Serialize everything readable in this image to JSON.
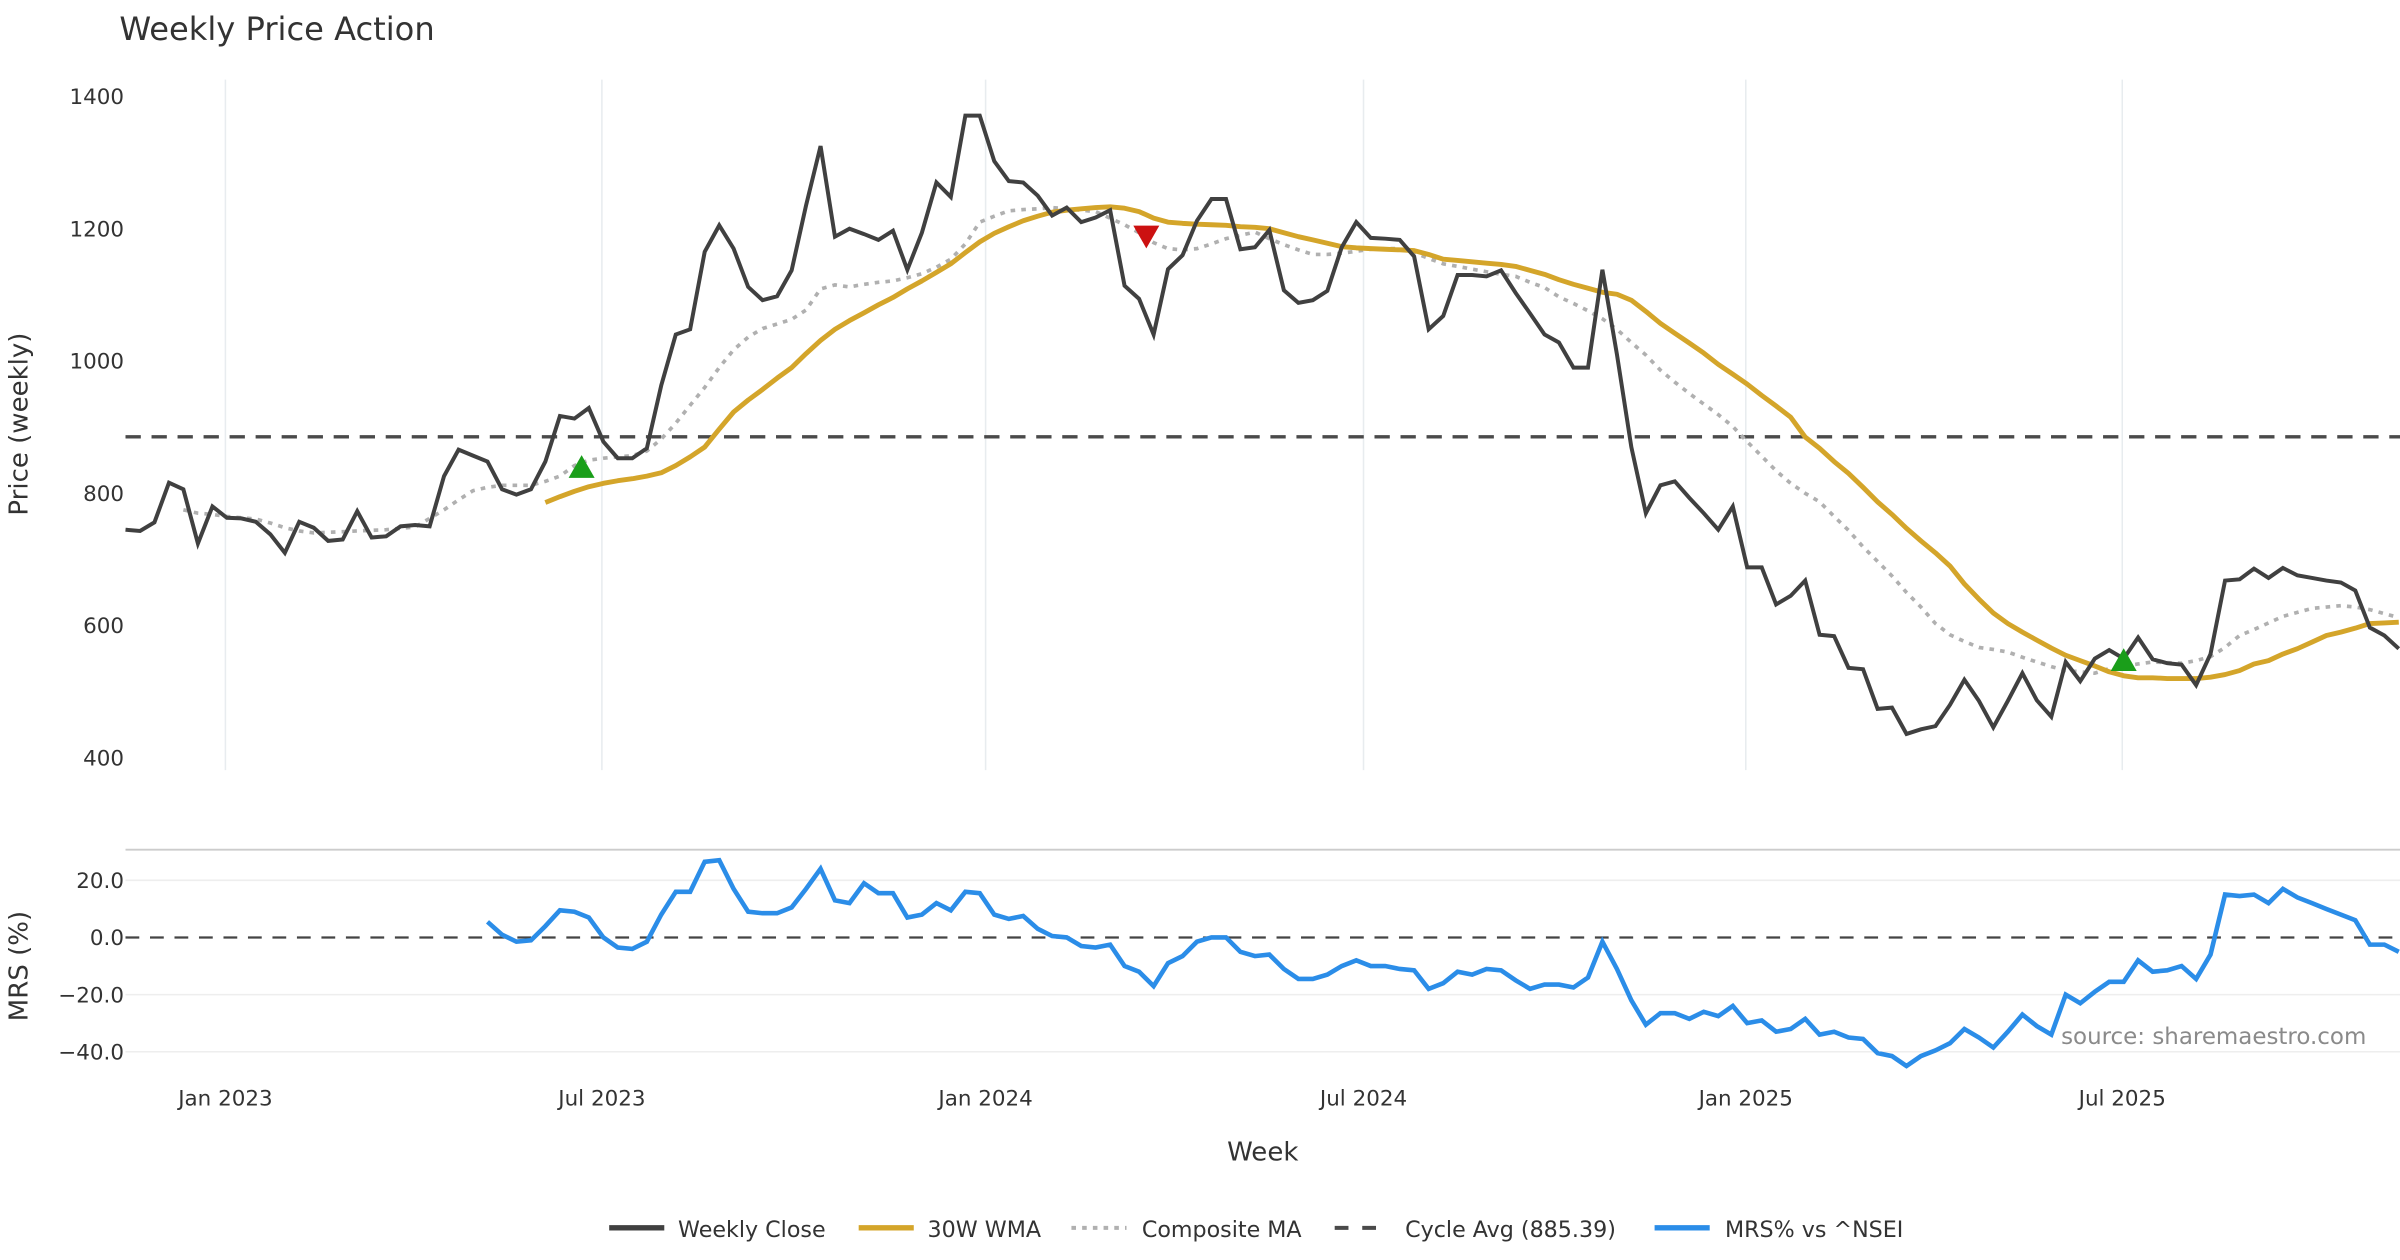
{
  "chart_data": [
    {
      "type": "line",
      "title": "Weekly Price Action",
      "xlabel": "Week",
      "ylabel": "Price (weekly)",
      "ylim": [
        400,
        1400
      ],
      "yticks": [
        "1400",
        "1200",
        "1000",
        "800",
        "600",
        "400"
      ],
      "ytick_values": [
        1400,
        1200,
        1000,
        800,
        600,
        400
      ],
      "x_start": "2022-11-18",
      "x_frequency": "weekly",
      "xticks": [
        "Jan 2023",
        "Jul 2023",
        "Jan 2024",
        "Jul 2024",
        "Jan 2025",
        "Jul 2025"
      ],
      "xtick_week_index": [
        6.9,
        32.9,
        59.4,
        85.5,
        111.9,
        137.9
      ],
      "grid": "x",
      "series": [
        {
          "name": "Weekly Close",
          "color": "#404040",
          "style": "solid",
          "start_index": 0,
          "values": [
            745,
            743,
            756,
            816,
            806,
            724,
            780,
            763,
            762,
            757,
            738,
            710,
            757,
            748,
            728,
            730,
            773,
            733,
            735,
            750,
            752,
            750,
            826,
            866,
            857,
            848,
            806,
            798,
            806,
            848,
            917,
            913,
            929,
            878,
            853,
            853,
            868,
            963,
            1040,
            1048,
            1165,
            1205,
            1170,
            1112,
            1092,
            1098,
            1137,
            1235,
            1325,
            1188,
            1200,
            1192,
            1183,
            1197,
            1138,
            1194,
            1270,
            1248,
            1371,
            1371,
            1302,
            1272,
            1270,
            1250,
            1220,
            1232,
            1210,
            1217,
            1228,
            1114,
            1094,
            1040,
            1139,
            1160,
            1212,
            1245,
            1245,
            1169,
            1172,
            1198,
            1107,
            1088,
            1092,
            1106,
            1172,
            1210,
            1186,
            1185,
            1183,
            1158,
            1048,
            1068,
            1130,
            1130,
            1128,
            1137,
            1103,
            1072,
            1040,
            1028,
            990,
            990,
            1138,
            1010,
            870,
            770,
            812,
            818,
            793,
            770,
            745,
            780,
            688,
            688,
            632,
            645,
            668,
            586,
            584,
            536,
            534,
            474,
            476,
            436,
            443,
            448,
            480,
            518,
            486,
            446,
            486,
            528,
            487,
            462,
            545,
            516,
            550,
            563,
            550,
            582,
            549,
            543,
            541,
            510,
            557,
            668,
            670,
            686,
            672,
            687,
            676,
            672,
            668,
            665,
            653,
            597,
            585,
            565
          ]
        },
        {
          "name": "30W WMA",
          "color": "#d4a52a",
          "style": "solid",
          "start_index": 29,
          "values": [
            786,
            795,
            803,
            810,
            815,
            819,
            822,
            826,
            831,
            842,
            855,
            870,
            897,
            923,
            941,
            957,
            974,
            990,
            1011,
            1031,
            1048,
            1061,
            1073,
            1085,
            1096,
            1109,
            1121,
            1134,
            1147,
            1164,
            1180,
            1193,
            1203,
            1212,
            1219,
            1225,
            1228,
            1230,
            1232,
            1233,
            1231,
            1226,
            1216,
            1210,
            1208,
            1207,
            1206,
            1205,
            1203,
            1202,
            1200,
            1194,
            1188,
            1183,
            1178,
            1173,
            1171,
            1170,
            1169,
            1168,
            1167,
            1161,
            1154,
            1152,
            1150,
            1148,
            1146,
            1143,
            1137,
            1131,
            1123,
            1116,
            1110,
            1104,
            1101,
            1092,
            1075,
            1057,
            1042,
            1027,
            1012,
            995,
            980,
            965,
            948,
            932,
            915,
            885,
            868,
            848,
            830,
            809,
            787,
            768,
            747,
            728,
            710,
            690,
            663,
            640,
            619,
            603,
            590,
            578,
            566,
            555,
            547,
            539,
            530,
            524,
            521,
            521,
            520,
            520,
            520,
            522,
            526,
            532,
            542,
            547,
            557,
            565,
            575,
            585,
            590,
            596,
            603,
            604,
            605
          ]
        },
        {
          "name": "Composite MA",
          "color": "#b0b0b0",
          "style": "dotted",
          "start_index": 4,
          "values": [
            775,
            770,
            768,
            765,
            763,
            761,
            755,
            748,
            743,
            740,
            741,
            742,
            743,
            744,
            745,
            747,
            749,
            762,
            775,
            790,
            804,
            809,
            812,
            812,
            812,
            818,
            826,
            842,
            850,
            853,
            855,
            857,
            864,
            882,
            906,
            933,
            960,
            990,
            1017,
            1036,
            1049,
            1056,
            1063,
            1077,
            1109,
            1115,
            1112,
            1116,
            1119,
            1121,
            1126,
            1132,
            1142,
            1154,
            1177,
            1210,
            1219,
            1227,
            1229,
            1230,
            1232,
            1230,
            1228,
            1226,
            1216,
            1206,
            1194,
            1179,
            1170,
            1168,
            1170,
            1177,
            1185,
            1190,
            1195,
            1185,
            1176,
            1168,
            1161,
            1161,
            1163,
            1166,
            1169,
            1170,
            1170,
            1164,
            1155,
            1147,
            1143,
            1139,
            1135,
            1131,
            1128,
            1119,
            1111,
            1097,
            1087,
            1076,
            1064,
            1048,
            1028,
            1009,
            986,
            968,
            951,
            935,
            919,
            901,
            878,
            856,
            834,
            815,
            800,
            787,
            765,
            744,
            719,
            697,
            675,
            650,
            628,
            603,
            586,
            576,
            567,
            564,
            560,
            552,
            545,
            538,
            532,
            530,
            528,
            535,
            539,
            542,
            545,
            544,
            543,
            547,
            553,
            567,
            585,
            594,
            604,
            614,
            620,
            626,
            628,
            630,
            628,
            624,
            618,
            612
          ]
        },
        {
          "name": "Cycle Avg (885.39)",
          "color": "#4a4a4a",
          "style": "dashed",
          "constant": 885.39
        }
      ],
      "markers": [
        {
          "type": "buy",
          "shape": "triangle-up",
          "color": "#1a9e1a",
          "week_index": 31.5,
          "value": 838
        },
        {
          "type": "sell",
          "shape": "triangle-down",
          "color": "#cc1111",
          "week_index": 70.5,
          "value": 1190
        },
        {
          "type": "buy",
          "shape": "triangle-up",
          "color": "#1a9e1a",
          "week_index": 138,
          "value": 546
        }
      ]
    },
    {
      "type": "line",
      "xlabel": "Week",
      "ylabel": "MRS (%)",
      "ylim": [
        -45,
        30
      ],
      "yticks": [
        "20.0",
        "0.0",
        "−20.0",
        "−40.0"
      ],
      "ytick_values": [
        20,
        0,
        -20,
        -40
      ],
      "grid": "y",
      "zero_line": "dashed",
      "series": [
        {
          "name": "MRS% vs ^NSEI",
          "color": "#2b8de8",
          "style": "solid",
          "start_index": 25,
          "values": [
            5.5,
            1,
            -1.5,
            -1,
            4,
            9.5,
            9,
            7,
            0,
            -3.5,
            -4,
            -1.5,
            8,
            16,
            16,
            26.5,
            27,
            17,
            9,
            8.5,
            8.5,
            10.5,
            17,
            24,
            13,
            12,
            19,
            15.5,
            15.5,
            7,
            8,
            12,
            9.5,
            16,
            15.5,
            8,
            6.5,
            7.5,
            3,
            0.5,
            0,
            -3,
            -3.5,
            -2.5,
            -10,
            -12,
            -17,
            -9,
            -6.5,
            -1.5,
            0,
            0,
            -5,
            -6.5,
            -6,
            -11,
            -14.5,
            -14.5,
            -13,
            -10,
            -8,
            -10,
            -10,
            -11,
            -11.5,
            -18,
            -16,
            -12,
            -13,
            -11,
            -11.5,
            -15,
            -18,
            -16.5,
            -16.5,
            -17.5,
            -14,
            -1.5,
            -11,
            -22,
            -30.5,
            -26.5,
            -26.5,
            -28.5,
            -26,
            -27.5,
            -24,
            -30,
            -29,
            -33,
            -32,
            -28.5,
            -34,
            -33,
            -35,
            -35.5,
            -40.5,
            -41.5,
            -45,
            -41.5,
            -39.5,
            -37,
            -32,
            -35,
            -38.5,
            -33,
            -27,
            -31,
            -34,
            -20,
            -23,
            -19,
            -15.5,
            -15.5,
            -8,
            -12,
            -11.5,
            -10,
            -14.5,
            -6,
            15,
            14.5,
            15,
            12,
            17,
            14,
            12,
            10,
            8,
            6,
            -2.5,
            -2.5,
            -5
          ]
        }
      ]
    }
  ],
  "legend": {
    "placement": "bottom-center",
    "items": [
      {
        "label": "Weekly Close",
        "color": "#404040",
        "style": "solid"
      },
      {
        "label": "30W WMA",
        "color": "#d4a52a",
        "style": "solid"
      },
      {
        "label": "Composite MA",
        "color": "#b0b0b0",
        "style": "dotted"
      },
      {
        "label": "Cycle Avg (885.39)",
        "color": "#4a4a4a",
        "style": "dashed"
      },
      {
        "label": "MRS% vs ^NSEI",
        "color": "#2b8de8",
        "style": "solid"
      }
    ]
  },
  "source_text": "source: sharemaestro.com"
}
